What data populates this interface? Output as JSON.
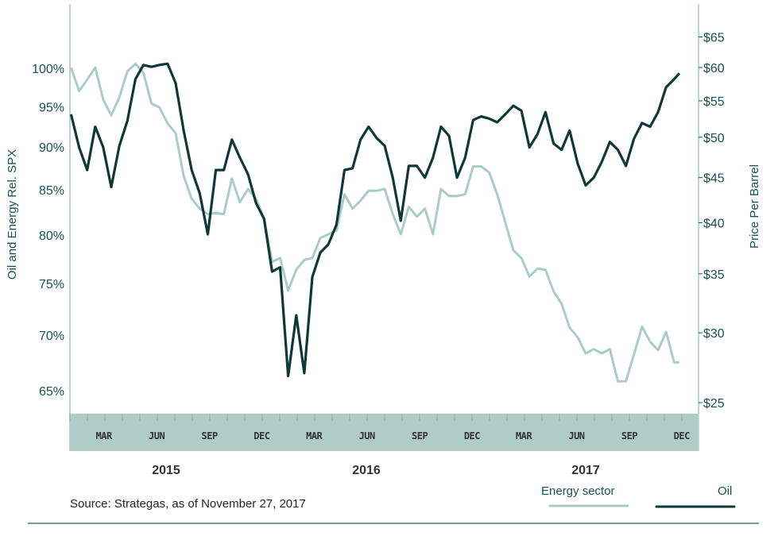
{
  "chart_data": {
    "type": "line",
    "left_axis": {
      "label": "Oil and Energy Rel. SPX",
      "scale": "log",
      "range": [
        62,
        107
      ],
      "ticks": [
        {
          "v": 100,
          "t": "100%"
        },
        {
          "v": 95,
          "t": "95%"
        },
        {
          "v": 90,
          "t": "90%"
        },
        {
          "v": 85,
          "t": "85%"
        },
        {
          "v": 80,
          "t": "80%"
        },
        {
          "v": 75,
          "t": "75%"
        },
        {
          "v": 70,
          "t": "70%"
        },
        {
          "v": 65,
          "t": "65%"
        }
      ]
    },
    "right_axis": {
      "label": "Price Per Barrel",
      "scale": "log",
      "range": [
        23.7,
        68
      ],
      "ticks": [
        {
          "v": 65,
          "t": "$65"
        },
        {
          "v": 60,
          "t": "$60"
        },
        {
          "v": 55,
          "t": "$55"
        },
        {
          "v": 50,
          "t": "$50"
        },
        {
          "v": 45,
          "t": "$45"
        },
        {
          "v": 40,
          "t": "$40"
        },
        {
          "v": 35,
          "t": "$35"
        },
        {
          "v": 30,
          "t": "$30"
        },
        {
          "v": 25,
          "t": "$25"
        }
      ]
    },
    "x_axis": {
      "range": [
        "2015-01-01",
        "2017-12-31"
      ],
      "month_ticks": [
        {
          "d": "2015-03-01",
          "t": "MAR"
        },
        {
          "d": "2015-06-01",
          "t": "JUN"
        },
        {
          "d": "2015-09-01",
          "t": "SEP"
        },
        {
          "d": "2015-12-01",
          "t": "DEC"
        },
        {
          "d": "2016-03-01",
          "t": "MAR"
        },
        {
          "d": "2016-06-01",
          "t": "JUN"
        },
        {
          "d": "2016-09-01",
          "t": "SEP"
        },
        {
          "d": "2016-12-01",
          "t": "DEC"
        },
        {
          "d": "2017-03-01",
          "t": "MAR"
        },
        {
          "d": "2017-06-01",
          "t": "JUN"
        },
        {
          "d": "2017-09-01",
          "t": "SEP"
        },
        {
          "d": "2017-12-01",
          "t": "DEC"
        }
      ],
      "years": [
        {
          "d": "2015-07-01",
          "t": "2015"
        },
        {
          "d": "2016-07-01",
          "t": "2016"
        },
        {
          "d": "2017-07-01",
          "t": "2017"
        }
      ]
    },
    "grid": false,
    "legend_position": "bottom-right",
    "x": [
      "2015-01-03",
      "2015-01-17",
      "2015-01-31",
      "2015-02-14",
      "2015-02-28",
      "2015-03-14",
      "2015-03-28",
      "2015-04-11",
      "2015-04-25",
      "2015-05-09",
      "2015-05-23",
      "2015-06-06",
      "2015-06-20",
      "2015-07-04",
      "2015-07-18",
      "2015-08-01",
      "2015-08-15",
      "2015-08-29",
      "2015-09-12",
      "2015-09-26",
      "2015-10-10",
      "2015-10-24",
      "2015-11-07",
      "2015-11-21",
      "2015-12-05",
      "2015-12-19",
      "2016-01-02",
      "2016-01-16",
      "2016-01-30",
      "2016-02-13",
      "2016-02-27",
      "2016-03-12",
      "2016-03-26",
      "2016-04-09",
      "2016-04-23",
      "2016-05-07",
      "2016-05-21",
      "2016-06-04",
      "2016-06-18",
      "2016-07-02",
      "2016-07-16",
      "2016-07-30",
      "2016-08-13",
      "2016-08-27",
      "2016-09-10",
      "2016-09-24",
      "2016-10-08",
      "2016-10-22",
      "2016-11-05",
      "2016-11-19",
      "2016-12-03",
      "2016-12-17",
      "2016-12-31",
      "2017-01-14",
      "2017-01-28",
      "2017-02-11",
      "2017-02-25",
      "2017-03-11",
      "2017-03-25",
      "2017-04-08",
      "2017-04-22",
      "2017-05-06",
      "2017-05-20",
      "2017-06-03",
      "2017-06-17",
      "2017-07-01",
      "2017-07-15",
      "2017-07-29",
      "2017-08-12",
      "2017-08-26",
      "2017-09-09",
      "2017-09-23",
      "2017-10-07",
      "2017-10-21",
      "2017-11-04",
      "2017-11-18",
      "2017-11-27"
    ],
    "series": [
      {
        "name": "Energy sector",
        "axis": "left",
        "color": "#a9cdc6",
        "values": [
          100.1,
          97.0,
          98.5,
          100.1,
          95.9,
          93.9,
          96.2,
          99.6,
          100.6,
          99.4,
          95.4,
          94.9,
          92.9,
          91.7,
          86.6,
          84.0,
          82.9,
          82.3,
          82.4,
          82.3,
          86.3,
          83.6,
          85.1,
          84.0,
          81.8,
          77.2,
          77.6,
          74.3,
          76.4,
          77.4,
          77.6,
          79.7,
          80.1,
          80.5,
          84.5,
          82.9,
          83.8,
          84.9,
          84.9,
          85.1,
          82.3,
          80.1,
          83.1,
          82.0,
          82.9,
          80.1,
          85.1,
          84.3,
          84.3,
          84.5,
          87.7,
          87.7,
          87.0,
          84.5,
          81.4,
          78.4,
          77.6,
          75.7,
          76.5,
          76.4,
          74.2,
          73.0,
          70.7,
          69.8,
          68.3,
          68.7,
          68.3,
          68.7,
          65.8,
          65.8,
          68.2,
          70.8,
          69.4,
          68.6,
          70.3,
          67.5,
          67.5
        ]
      },
      {
        "name": "Oil",
        "axis": "right",
        "color": "#0f3836",
        "values": [
          53.1,
          48.7,
          45.9,
          51.4,
          48.7,
          43.9,
          48.9,
          52.2,
          58.2,
          60.4,
          60.1,
          60.4,
          60.6,
          57.6,
          50.9,
          45.9,
          43.2,
          38.8,
          45.9,
          45.9,
          49.7,
          47.4,
          45.4,
          42.1,
          40.4,
          35.2,
          35.6,
          26.8,
          31.4,
          27.0,
          34.7,
          37.0,
          37.8,
          39.8,
          45.9,
          46.1,
          49.7,
          51.4,
          49.9,
          48.9,
          45.0,
          40.2,
          46.4,
          46.4,
          45.0,
          47.4,
          51.4,
          50.2,
          45.0,
          47.4,
          52.3,
          52.8,
          52.5,
          52.0,
          53.1,
          54.3,
          53.6,
          48.7,
          50.4,
          53.4,
          49.2,
          48.4,
          50.9,
          46.7,
          44.1,
          45.0,
          46.9,
          49.4,
          48.4,
          46.4,
          49.8,
          51.9,
          51.4,
          53.4,
          57.0,
          58.2,
          59.1
        ]
      }
    ]
  },
  "source": "Source: Strategas, as of November 27, 2017",
  "legend": {
    "energy": "Energy sector",
    "oil": "Oil"
  },
  "colors": {
    "band": "#afcdc6",
    "label": "#135450",
    "energy": "#a9cdc6",
    "oil": "#0f3836"
  }
}
